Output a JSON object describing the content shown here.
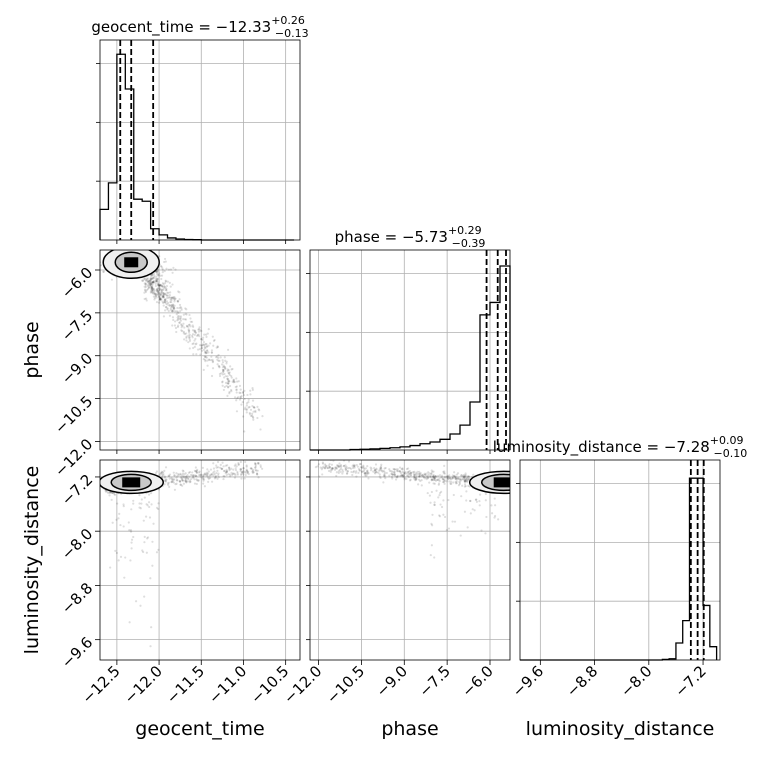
{
  "chart_data": {
    "type": "corner",
    "parameters": [
      "geocent_time",
      "phase",
      "luminosity_distance"
    ],
    "summaries": [
      {
        "param": "geocent_time",
        "prefix": "geocent_time = ",
        "median": "−12.33",
        "plus": "+0.26",
        "minus": "−0.13",
        "median_value": -12.33,
        "lo_value": -12.46,
        "hi_value": -12.07
      },
      {
        "param": "phase",
        "prefix": "phase = ",
        "median": "−5.73",
        "plus": "+0.29",
        "minus": "−0.39",
        "median_value": -5.73,
        "lo_value": -6.12,
        "hi_value": -5.44
      },
      {
        "param": "luminosity_distance",
        "prefix": "luminosity_distance = ",
        "median": "−7.28",
        "plus": "+0.09",
        "minus": "−0.10",
        "median_value": -7.28,
        "lo_value": -7.38,
        "hi_value": -7.19
      }
    ],
    "ranges": {
      "geocent_time": [
        -12.7,
        -10.33
      ],
      "phase": [
        -12.3,
        -5.3
      ],
      "luminosity_distance": [
        -9.9,
        -6.95
      ]
    },
    "ticks": {
      "geocent_time": [
        {
          "v": -12.5,
          "label": "−12.5"
        },
        {
          "v": -12.0,
          "label": "−12.0"
        },
        {
          "v": -11.5,
          "label": "−11.5"
        },
        {
          "v": -11.0,
          "label": "−11.0"
        },
        {
          "v": -10.5,
          "label": "−10.5"
        }
      ],
      "phase": [
        {
          "v": -12.0,
          "label": "−12.0"
        },
        {
          "v": -10.5,
          "label": "−10.5"
        },
        {
          "v": -9.0,
          "label": "−9.0"
        },
        {
          "v": -7.5,
          "label": "−7.5"
        },
        {
          "v": -6.0,
          "label": "−6.0"
        }
      ],
      "luminosity_distance": [
        {
          "v": -9.6,
          "label": "−9.6"
        },
        {
          "v": -8.8,
          "label": "−8.8"
        },
        {
          "v": -8.0,
          "label": "−8.0"
        },
        {
          "v": -7.2,
          "label": "−7.2"
        }
      ]
    },
    "histograms": {
      "geocent_time": {
        "bins": [
          -12.7,
          -12.6,
          -12.5,
          -12.4,
          -12.3,
          -12.2,
          -12.1,
          -12.0,
          -11.9,
          -11.8,
          -11.7,
          -11.6,
          -11.5,
          -11.4,
          -11.3,
          -11.2,
          -11.1,
          -11.0,
          -10.9,
          -10.8,
          -10.7,
          -10.6,
          -10.5,
          -10.4
        ],
        "counts": [
          30,
          56,
          182,
          148,
          40,
          38,
          11,
          5,
          2,
          1,
          0.5,
          0.3,
          0,
          0,
          0,
          0,
          0,
          0,
          0,
          0,
          0,
          0,
          0
        ],
        "ymax": 196
      },
      "phase": {
        "bins": [
          -12.3,
          -11.95,
          -11.6,
          -11.25,
          -10.9,
          -10.55,
          -10.2,
          -9.85,
          -9.5,
          -9.15,
          -8.8,
          -8.45,
          -8.1,
          -7.75,
          -7.4,
          -7.05,
          -6.7,
          -6.35,
          -6.0,
          -5.65,
          -5.3
        ],
        "counts": [
          0,
          0,
          0,
          0,
          0.5,
          0.8,
          1.2,
          1.8,
          2.5,
          3.5,
          5,
          7,
          9,
          12,
          18,
          28,
          54,
          152,
          166,
          207
        ],
        "ymax": 225
      },
      "luminosity_distance": {
        "bins": [
          -9.9,
          -9.8,
          -9.7,
          -9.6,
          -9.5,
          -9.4,
          -9.3,
          -9.2,
          -9.1,
          -9.0,
          -8.9,
          -8.8,
          -8.7,
          -8.6,
          -8.5,
          -8.4,
          -8.3,
          -8.2,
          -8.1,
          -8.0,
          -7.9,
          -7.8,
          -7.7,
          -7.6,
          -7.5,
          -7.4,
          -7.3,
          -7.2,
          -7.1,
          -7.0
        ],
        "counts": [
          0,
          0,
          0,
          0,
          0,
          0,
          0,
          0,
          0,
          0,
          0,
          0,
          0,
          0,
          0,
          0,
          0,
          0,
          0,
          0,
          0,
          1,
          2,
          28,
          65,
          300,
          300,
          90,
          22
        ],
        "ymax": 330
      }
    },
    "grid": true,
    "contour_color": "#000000",
    "scatter_color": "#000000"
  }
}
